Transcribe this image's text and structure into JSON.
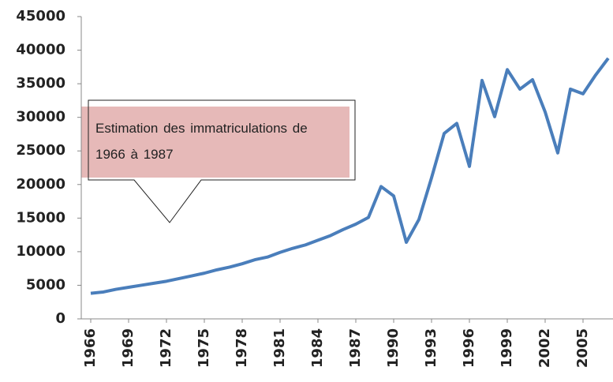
{
  "chart_data": {
    "type": "line",
    "categories": [
      "1966",
      null,
      null,
      "1969",
      null,
      null,
      "1972",
      null,
      null,
      "1975",
      null,
      null,
      "1978",
      null,
      null,
      "1981",
      null,
      null,
      "1984",
      null,
      null,
      "1987",
      null,
      null,
      "1990",
      null,
      null,
      "1993",
      null,
      null,
      "1996",
      null,
      null,
      "1999",
      null,
      null,
      "2002",
      null,
      null,
      "2005",
      null,
      null
    ],
    "values": [
      3800,
      4000,
      4400,
      4700,
      5000,
      5300,
      5600,
      6000,
      6400,
      6800,
      7300,
      7700,
      8200,
      8800,
      9200,
      9900,
      10500,
      11000,
      11700,
      12400,
      13300,
      14100,
      15100,
      19700,
      18300,
      11400,
      14800,
      21000,
      27600,
      29100,
      22700,
      35500,
      30100,
      37100,
      34200,
      35600,
      30800,
      24700,
      34200,
      33500,
      36300,
      38800
    ],
    "color": "#4a7ebb",
    "ylim": [
      0,
      45000
    ],
    "yticks": [
      0,
      5000,
      10000,
      15000,
      20000,
      25000,
      30000,
      35000,
      40000,
      45000
    ],
    "grid": false,
    "annotation": "Estimation des immatriculations de 1966 à 1987"
  }
}
